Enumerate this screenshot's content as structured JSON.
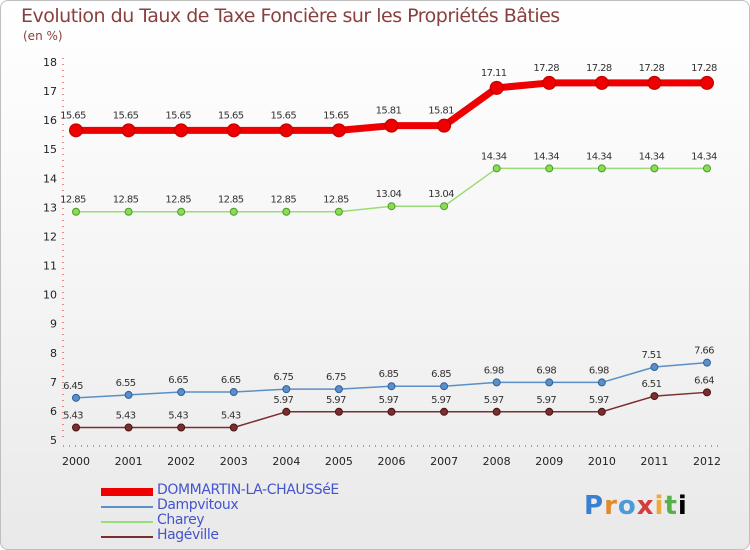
{
  "chart_data": {
    "type": "line",
    "title": "Evolution du Taux de Taxe Foncière sur les Propriétés Bâties",
    "ylabel": "(en %)",
    "xlabel": "",
    "x": [
      "2000",
      "2001",
      "2002",
      "2003",
      "2004",
      "2005",
      "2006",
      "2007",
      "2008",
      "2009",
      "2010",
      "2011",
      "2012"
    ],
    "ylim": [
      5,
      18
    ],
    "yticks": [
      "5",
      "6",
      "7",
      "8",
      "9",
      "10",
      "11",
      "12",
      "13",
      "14",
      "15",
      "16",
      "17",
      "18"
    ],
    "series": [
      {
        "name": "DOMMARTIN-LA-CHAUSSéE",
        "color": "#ee0000",
        "values": [
          15.65,
          15.65,
          15.65,
          15.65,
          15.65,
          15.65,
          15.81,
          15.81,
          17.11,
          17.28,
          17.28,
          17.28,
          17.28
        ],
        "labels": [
          "15.65",
          "15.65",
          "15.65",
          "15.65",
          "15.65",
          "15.65",
          "15.81",
          "15.81",
          "17.11",
          "17.28",
          "17.28",
          "17.28",
          "17.28"
        ]
      },
      {
        "name": "Dampvitoux",
        "color": "#5b8fc7",
        "values": [
          6.45,
          6.55,
          6.65,
          6.65,
          6.75,
          6.75,
          6.85,
          6.85,
          6.98,
          6.98,
          6.98,
          7.51,
          7.66
        ],
        "labels": [
          "6.45",
          "6.55",
          "6.65",
          "6.65",
          "6.75",
          "6.75",
          "6.85",
          "6.85",
          "6.98",
          "6.98",
          "6.98",
          "7.51",
          "7.66"
        ]
      },
      {
        "name": "Charey",
        "color": "#99dd77",
        "values": [
          12.85,
          12.85,
          12.85,
          12.85,
          12.85,
          12.85,
          13.04,
          13.04,
          14.34,
          14.34,
          14.34,
          14.34,
          14.34
        ],
        "labels": [
          "12.85",
          "12.85",
          "12.85",
          "12.85",
          "12.85",
          "12.85",
          "13.04",
          "13.04",
          "14.34",
          "14.34",
          "14.34",
          "14.34",
          "14.34"
        ]
      },
      {
        "name": "Hagéville",
        "color": "#7a2e2e",
        "values": [
          5.43,
          5.43,
          5.43,
          5.43,
          5.97,
          5.97,
          5.97,
          5.97,
          5.97,
          5.97,
          5.97,
          6.51,
          6.64
        ],
        "labels": [
          "5.43",
          "5.43",
          "5.43",
          "5.43",
          "5.97",
          "5.97",
          "5.97",
          "5.97",
          "5.97",
          "5.97",
          "5.97",
          "6.51",
          "6.64"
        ]
      }
    ],
    "grid": false,
    "legend_position": "bottom-left"
  },
  "logo": {
    "text": [
      "P",
      "r",
      "o",
      "x",
      "i",
      "t",
      "i"
    ]
  }
}
